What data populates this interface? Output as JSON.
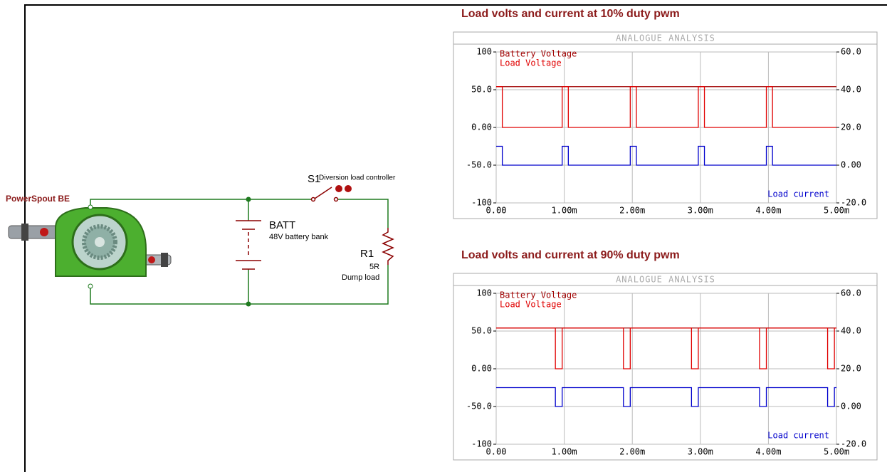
{
  "schematic": {
    "generator": "PowerSpout BE",
    "switch": {
      "label": "S1",
      "note": "Diversion load controller"
    },
    "battery": {
      "label": "BATT",
      "note": "48V battery bank"
    },
    "resistor": {
      "label": "R1",
      "value": "5R",
      "note": "Dump load"
    }
  },
  "chart_data": [
    {
      "type": "line",
      "title": "Load volts and current at 10% duty pwm",
      "plot_title": "ANALOGUE ANALYSIS",
      "grid": true,
      "x": [
        0,
        9e-05,
        9e-05,
        0.00097,
        0.00097,
        0.00106,
        0.00106,
        0.00197,
        0.00197,
        0.00206,
        0.00206,
        0.00297,
        0.00297,
        0.00306,
        0.00306,
        0.00397,
        0.00397,
        0.00406,
        0.00406,
        0.005
      ],
      "xlim": [
        0,
        0.005
      ],
      "xticks": [
        {
          "value": 0,
          "label": "0.00"
        },
        {
          "value": 0.001,
          "label": "1.00m"
        },
        {
          "value": 0.002,
          "label": "2.00m"
        },
        {
          "value": 0.003,
          "label": "3.00m"
        },
        {
          "value": 0.004,
          "label": "4.00m"
        },
        {
          "value": 0.005,
          "label": "5.00m"
        }
      ],
      "ylim": [
        -100,
        100
      ],
      "yticks": [
        -100,
        {
          "value": -50,
          "label": "-50.0"
        },
        {
          "value": 0,
          "label": "0.00"
        },
        {
          "value": 50,
          "label": "50.0"
        },
        100
      ],
      "y2lim": [
        -20,
        60
      ],
      "y2ticks": [
        {
          "value": -20,
          "label": "-20.0"
        },
        {
          "value": 0,
          "label": "0.00"
        },
        {
          "value": 20,
          "label": "20.0"
        },
        {
          "value": 40,
          "label": "40.0"
        },
        {
          "value": 60,
          "label": "60.0"
        }
      ],
      "series": [
        {
          "name": "Battery Voltage",
          "color": "#a00000",
          "values": [
            54,
            54,
            54,
            54,
            54,
            54,
            54,
            54,
            54,
            54,
            54,
            54,
            54,
            54,
            54,
            54,
            54,
            54,
            54,
            54
          ]
        },
        {
          "name": "Load Voltage",
          "color": "#e00000",
          "values": [
            54,
            54,
            0,
            0,
            54,
            54,
            0,
            0,
            54,
            54,
            0,
            0,
            54,
            54,
            0,
            0,
            54,
            54,
            0,
            0
          ]
        },
        {
          "name": "Load current",
          "color": "#0000cc",
          "axis": "y2",
          "values": [
            10,
            10,
            0,
            0,
            10,
            10,
            0,
            0,
            10,
            10,
            0,
            0,
            10,
            10,
            0,
            0,
            10,
            10,
            0,
            0
          ]
        }
      ]
    },
    {
      "type": "line",
      "title": "Load volts and current at 90% duty pwm",
      "plot_title": "ANALOGUE ANALYSIS",
      "grid": true,
      "x": [
        0,
        0.00087,
        0.00087,
        0.00097,
        0.00097,
        0.00187,
        0.00187,
        0.00197,
        0.00197,
        0.00287,
        0.00287,
        0.00297,
        0.00297,
        0.00387,
        0.00387,
        0.00397,
        0.00397,
        0.00487,
        0.00487,
        0.00497,
        0.00497,
        0.005
      ],
      "xlim": [
        0,
        0.005
      ],
      "xticks": [
        {
          "value": 0,
          "label": "0.00"
        },
        {
          "value": 0.001,
          "label": "1.00m"
        },
        {
          "value": 0.002,
          "label": "2.00m"
        },
        {
          "value": 0.003,
          "label": "3.00m"
        },
        {
          "value": 0.004,
          "label": "4.00m"
        },
        {
          "value": 0.005,
          "label": "5.00m"
        }
      ],
      "ylim": [
        -100,
        100
      ],
      "yticks": [
        -100,
        {
          "value": -50,
          "label": "-50.0"
        },
        {
          "value": 0,
          "label": "0.00"
        },
        {
          "value": 50,
          "label": "50.0"
        },
        100
      ],
      "y2lim": [
        -20,
        60
      ],
      "y2ticks": [
        {
          "value": -20,
          "label": "-20.0"
        },
        {
          "value": 0,
          "label": "0.00"
        },
        {
          "value": 20,
          "label": "20.0"
        },
        {
          "value": 40,
          "label": "40.0"
        },
        {
          "value": 60,
          "label": "60.0"
        }
      ],
      "series": [
        {
          "name": "Battery Voltage",
          "color": "#a00000",
          "values": [
            54,
            54,
            54,
            54,
            54,
            54,
            54,
            54,
            54,
            54,
            54,
            54,
            54,
            54,
            54,
            54,
            54,
            54,
            54,
            54,
            54,
            54
          ]
        },
        {
          "name": "Load Voltage",
          "color": "#e00000",
          "values": [
            54,
            54,
            0,
            0,
            54,
            54,
            0,
            0,
            54,
            54,
            0,
            0,
            54,
            54,
            0,
            0,
            54,
            54,
            0,
            0,
            54,
            54
          ]
        },
        {
          "name": "Load current",
          "color": "#0000cc",
          "axis": "y2",
          "values": [
            10,
            10,
            0,
            0,
            10,
            10,
            0,
            0,
            10,
            10,
            0,
            0,
            10,
            10,
            0,
            0,
            10,
            10,
            0,
            0,
            10,
            10
          ]
        }
      ]
    }
  ]
}
